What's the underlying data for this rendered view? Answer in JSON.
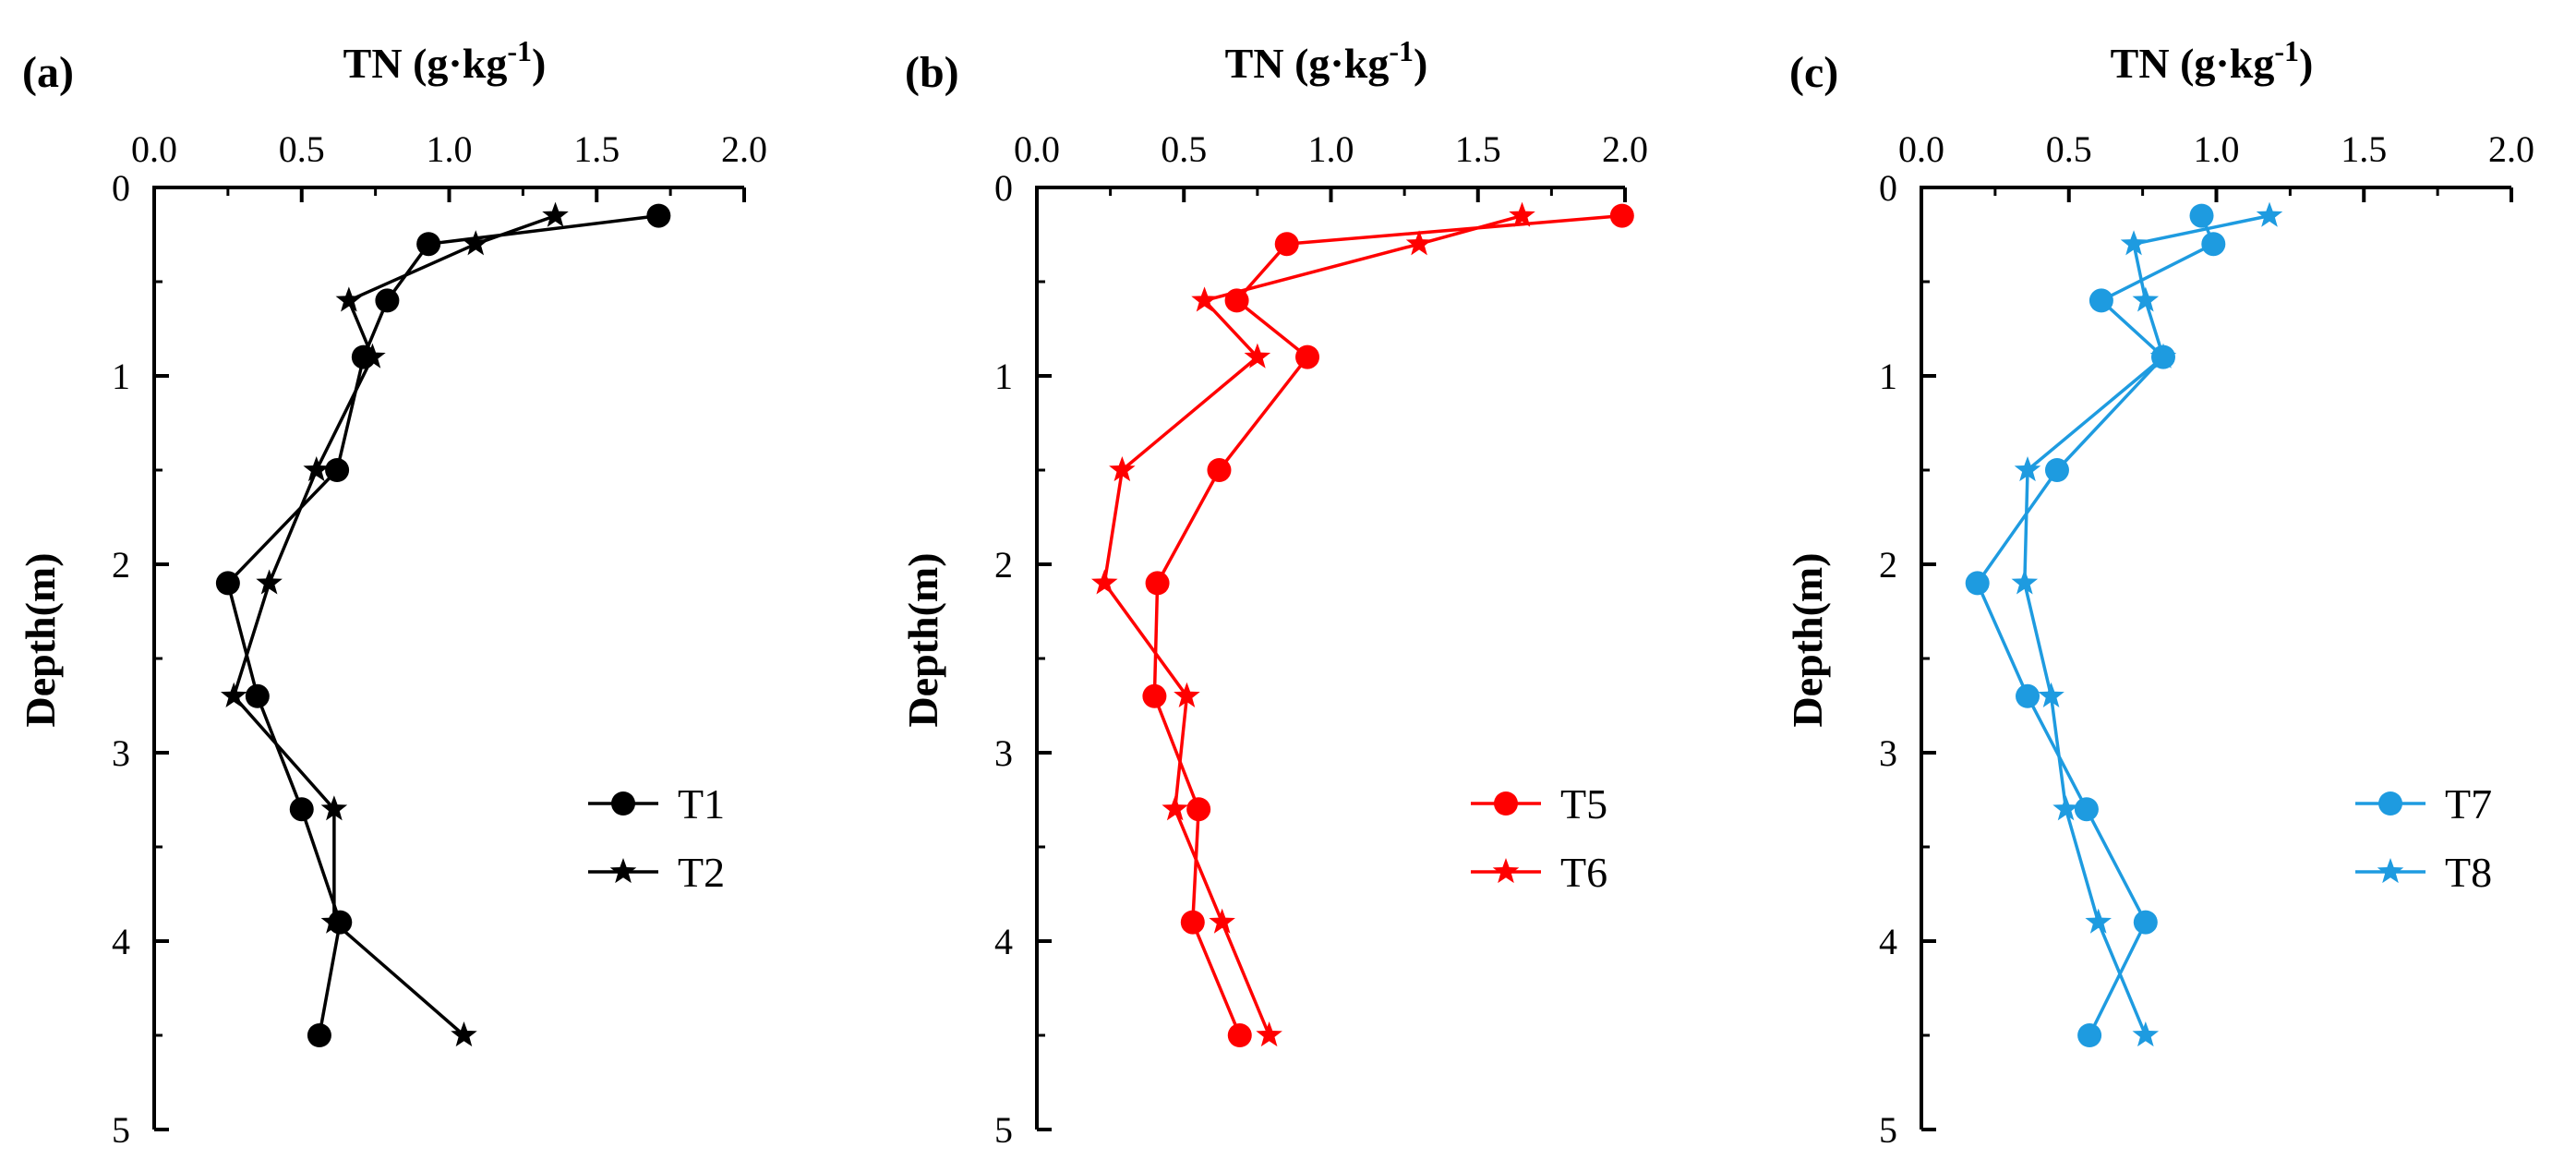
{
  "chart_data": [
    {
      "type": "line",
      "panel_label": "(a)",
      "title": "",
      "xlabel": "TN (g·kg",
      "xlabel_sup": "-1",
      "xlabel_close": ")",
      "ylabel": "Depth(m)",
      "xlim": [
        0,
        2.0
      ],
      "ylim": [
        0,
        5
      ],
      "y_inverted": true,
      "x_axis_position": "top",
      "xticks": [
        "0.0",
        "0.5",
        "1.0",
        "1.5",
        "2.0"
      ],
      "yticks": [
        "0",
        "1",
        "2",
        "3",
        "4",
        "5"
      ],
      "legend_position": "right",
      "color": "#000000",
      "depths": [
        0.15,
        0.3,
        0.6,
        0.9,
        1.5,
        2.1,
        2.7,
        3.3,
        3.9,
        4.5
      ],
      "series": [
        {
          "name": "T1",
          "marker": "circle",
          "values": [
            1.71,
            0.93,
            0.79,
            0.71,
            0.62,
            0.25,
            0.35,
            0.5,
            0.63,
            0.56
          ]
        },
        {
          "name": "T2",
          "marker": "star",
          "values": [
            1.36,
            1.09,
            0.66,
            0.74,
            0.55,
            0.39,
            0.27,
            0.61,
            0.61,
            1.05
          ]
        }
      ]
    },
    {
      "type": "line",
      "panel_label": "(b)",
      "title": "",
      "xlabel": "TN (g·kg",
      "xlabel_sup": "-1",
      "xlabel_close": ")",
      "ylabel": "Depth(m)",
      "xlim": [
        0,
        2.0
      ],
      "ylim": [
        0,
        5
      ],
      "y_inverted": true,
      "x_axis_position": "top",
      "xticks": [
        "0.0",
        "0.5",
        "1.0",
        "1.5",
        "2.0"
      ],
      "yticks": [
        "0",
        "1",
        "2",
        "3",
        "4",
        "5"
      ],
      "legend_position": "right",
      "color": "#ff0000",
      "depths": [
        0.15,
        0.3,
        0.6,
        0.9,
        1.5,
        2.1,
        2.7,
        3.3,
        3.9,
        4.5
      ],
      "series": [
        {
          "name": "T5",
          "marker": "circle",
          "values": [
            1.99,
            0.85,
            0.68,
            0.92,
            0.62,
            0.41,
            0.4,
            0.55,
            0.53,
            0.69
          ]
        },
        {
          "name": "T6",
          "marker": "star",
          "values": [
            1.65,
            1.3,
            0.57,
            0.75,
            0.29,
            0.23,
            0.51,
            0.47,
            0.63,
            0.79
          ]
        }
      ]
    },
    {
      "type": "line",
      "panel_label": "(c)",
      "title": "",
      "xlabel": "TN (g·kg",
      "xlabel_sup": "-1",
      "xlabel_close": ")",
      "ylabel": "Depth(m)",
      "xlim": [
        0,
        2.0
      ],
      "ylim": [
        0,
        5
      ],
      "y_inverted": true,
      "x_axis_position": "top",
      "xticks": [
        "0.0",
        "0.5",
        "1.0",
        "1.5",
        "2.0"
      ],
      "yticks": [
        "0",
        "1",
        "2",
        "3",
        "4",
        "5"
      ],
      "legend_position": "right",
      "color": "#1e9be0",
      "depths": [
        0.15,
        0.3,
        0.6,
        0.9,
        1.5,
        2.1,
        2.7,
        3.3,
        3.9,
        4.5
      ],
      "series": [
        {
          "name": "T7",
          "marker": "circle",
          "values": [
            0.95,
            0.99,
            0.61,
            0.82,
            0.46,
            0.19,
            0.36,
            0.56,
            0.76,
            0.57
          ]
        },
        {
          "name": "T8",
          "marker": "star",
          "values": [
            1.18,
            0.72,
            0.76,
            0.82,
            0.36,
            0.35,
            0.44,
            0.49,
            0.6,
            0.76
          ]
        }
      ]
    }
  ]
}
